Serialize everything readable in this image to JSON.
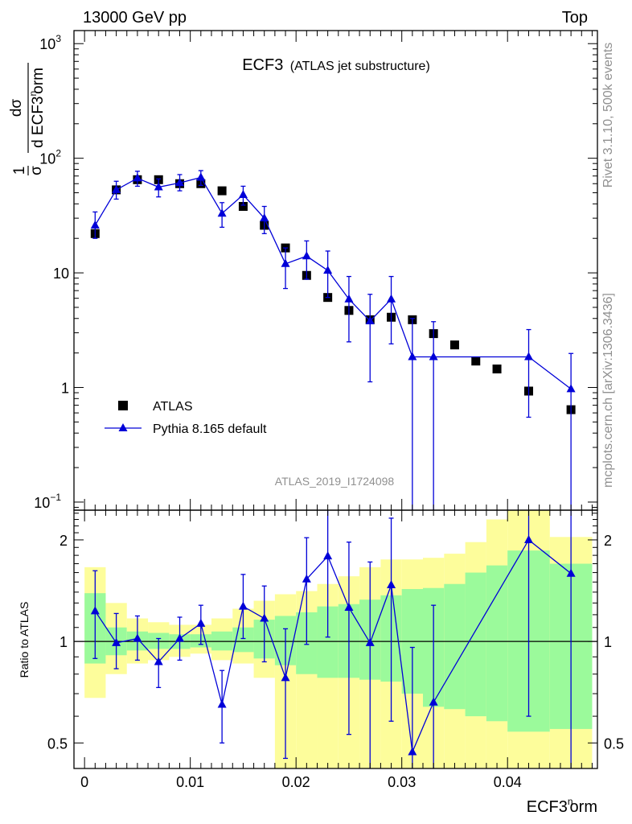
{
  "header": {
    "left": "13000 GeV pp",
    "right": "Top"
  },
  "side_labels": {
    "rivet": "Rivet 3.1.10,  500k events",
    "mcplots": "mcplots.cern.ch [arXiv:1306.3436]"
  },
  "colors": {
    "mc": "#0000d8",
    "data": "#000000",
    "band_stat": "#9bfa9b",
    "band_total": "#fdfd9b"
  },
  "chart_data": [
    {
      "type": "scatter",
      "title": "ECF3",
      "subtitle": "(ATLAS jet substructure)",
      "analysis_id": "ATLAS_2019_I1724098",
      "yscale": "log",
      "ylim": [
        0.085,
        1300
      ],
      "xlim": [
        -0.001,
        0.0485
      ],
      "ylabel": {
        "frac1_num": "1",
        "frac1_den": "σ",
        "frac2_num": "dσ",
        "frac2_den": "d ECF3",
        "den_sup": "n",
        "den_tail": "orm"
      },
      "yticks": [
        {
          "value": 0.1,
          "base": "10",
          "exp": "−1"
        },
        {
          "value": 1,
          "base": "1",
          "exp": ""
        },
        {
          "value": 10,
          "base": "10",
          "exp": ""
        },
        {
          "value": 100,
          "base": "10",
          "exp": "2"
        },
        {
          "value": 1000,
          "base": "10",
          "exp": "3"
        }
      ],
      "legend": {
        "position": "lower-left",
        "data_label": "ATLAS",
        "mc_label": "Pythia 8.165 default"
      },
      "data_series": {
        "name": "ATLAS",
        "x": [
          0.001,
          0.003,
          0.005,
          0.007,
          0.009,
          0.011,
          0.013,
          0.015,
          0.017,
          0.019,
          0.021,
          0.023,
          0.025,
          0.027,
          0.029,
          0.031,
          0.033,
          0.035,
          0.037,
          0.039,
          0.042,
          0.046
        ],
        "y": [
          22,
          53,
          65,
          65,
          60,
          60,
          52,
          38,
          26,
          16.5,
          9.5,
          6.1,
          4.7,
          3.9,
          4.1,
          3.9,
          2.95,
          2.35,
          1.7,
          1.45,
          0.93,
          0.64
        ]
      },
      "mc_series": {
        "name": "Pythia 8.165 default",
        "x": [
          0.001,
          0.003,
          0.005,
          0.007,
          0.009,
          0.011,
          0.013,
          0.015,
          0.017,
          0.019,
          0.021,
          0.023,
          0.025,
          0.027,
          0.029,
          0.031,
          0.033,
          0.042,
          0.046
        ],
        "y": [
          26,
          53,
          67,
          56,
          61,
          68,
          33,
          48,
          30,
          12,
          14,
          10.5,
          5.9,
          3.8,
          5.9,
          1.85,
          1.85,
          1.85,
          0.97
        ],
        "yerr_lo": [
          20,
          44,
          57,
          46,
          52,
          58,
          25,
          39,
          22,
          7.3,
          8.8,
          6.1,
          2.5,
          1.12,
          2.4,
          0.01,
          0.01,
          0.55,
          0.01
        ],
        "yerr_hi": [
          34,
          63,
          77,
          66,
          72,
          78,
          41,
          57,
          38,
          16.5,
          19,
          15.5,
          9.3,
          6.5,
          9.3,
          4.0,
          3.75,
          3.2,
          1.98
        ]
      }
    },
    {
      "type": "ratio",
      "ylabel": "Ratio to ATLAS",
      "xlabel": {
        "main": "ECF3",
        "sup": "n",
        "tail": "orm"
      },
      "yscale": "log",
      "ylim": [
        0.42,
        2.45
      ],
      "xlim": [
        -0.001,
        0.0485
      ],
      "yticks": [
        {
          "value": 0.5,
          "label": "0.5"
        },
        {
          "value": 1,
          "label": "1"
        },
        {
          "value": 2,
          "label": "2"
        }
      ],
      "xticks": [
        {
          "value": 0,
          "label": "0"
        },
        {
          "value": 0.01,
          "label": "0.01"
        },
        {
          "value": 0.02,
          "label": "0.02"
        },
        {
          "value": 0.03,
          "label": "0.03"
        },
        {
          "value": 0.04,
          "label": "0.04"
        }
      ],
      "bands": {
        "edges": [
          0.0,
          0.002,
          0.004,
          0.006,
          0.008,
          0.01,
          0.012,
          0.014,
          0.016,
          0.018,
          0.02,
          0.022,
          0.024,
          0.026,
          0.028,
          0.03,
          0.032,
          0.034,
          0.036,
          0.038,
          0.04,
          0.044,
          0.048
        ],
        "total_lo": [
          0.68,
          0.8,
          0.86,
          0.88,
          0.9,
          0.92,
          0.88,
          0.86,
          0.78,
          0.42,
          0.39,
          0.36,
          0.36,
          0.36,
          0.36,
          0.36,
          0.36,
          0.36,
          0.36,
          0.36,
          0.36,
          0.36
        ],
        "total_hi": [
          1.66,
          1.3,
          1.17,
          1.14,
          1.12,
          1.12,
          1.17,
          1.25,
          1.32,
          1.38,
          1.41,
          1.48,
          1.56,
          1.66,
          1.75,
          1.75,
          1.77,
          1.82,
          1.97,
          2.3,
          2.5,
          2.04
        ],
        "stat_lo": [
          0.86,
          0.91,
          0.94,
          0.95,
          0.95,
          0.96,
          0.94,
          0.93,
          0.89,
          0.85,
          0.8,
          0.78,
          0.78,
          0.77,
          0.76,
          0.7,
          0.64,
          0.63,
          0.6,
          0.58,
          0.54,
          0.55
        ],
        "stat_hi": [
          1.39,
          1.1,
          1.07,
          1.06,
          1.05,
          1.05,
          1.07,
          1.1,
          1.16,
          1.19,
          1.22,
          1.27,
          1.29,
          1.33,
          1.37,
          1.43,
          1.44,
          1.48,
          1.6,
          1.68,
          1.86,
          1.7
        ]
      },
      "mc_series": {
        "x": [
          0.001,
          0.003,
          0.005,
          0.007,
          0.009,
          0.011,
          0.013,
          0.015,
          0.017,
          0.019,
          0.021,
          0.023,
          0.025,
          0.027,
          0.029,
          0.031,
          0.033,
          0.042,
          0.046
        ],
        "y": [
          1.23,
          0.99,
          1.02,
          0.87,
          1.02,
          1.13,
          0.65,
          1.27,
          1.17,
          0.78,
          1.53,
          1.79,
          1.26,
          0.99,
          1.47,
          0.47,
          0.66,
          2.0,
          1.59
        ],
        "yerr_lo": [
          0.89,
          0.83,
          0.88,
          0.73,
          0.88,
          0.98,
          0.5,
          1.02,
          0.87,
          0.45,
          0.98,
          1.03,
          0.53,
          0.3,
          0.58,
          0.01,
          0.01,
          0.6,
          0.01
        ],
        "yerr_hi": [
          1.62,
          1.21,
          1.19,
          1.02,
          1.18,
          1.28,
          0.82,
          1.58,
          1.46,
          1.09,
          2.03,
          2.7,
          1.97,
          1.72,
          2.32,
          0.96,
          1.28,
          3.4,
          3.2
        ]
      }
    }
  ]
}
